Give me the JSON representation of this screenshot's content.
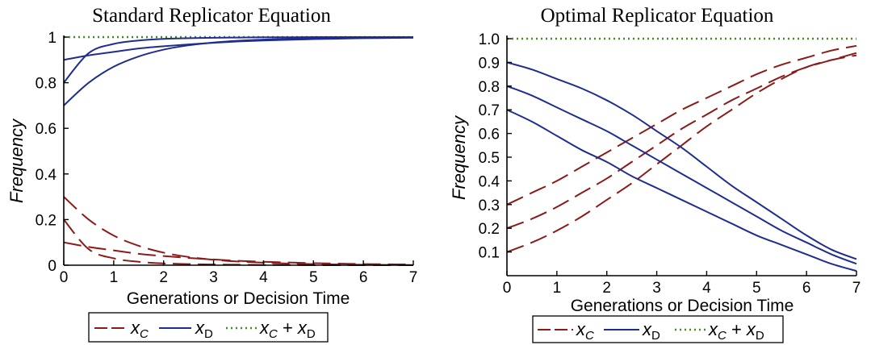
{
  "colors": {
    "xc": "#8b1a1a",
    "xd": "#1f2d8f",
    "sum": "#3d8f1a"
  },
  "legend": {
    "xc_label": "x",
    "xc_sub": "C",
    "xd_label": "x",
    "xd_sub": "D",
    "sum_a": "x",
    "sum_a_sub": "C",
    "sum_plus": " + ",
    "sum_b": "x",
    "sum_b_sub": "D"
  },
  "chart_data": [
    {
      "type": "line",
      "title": "Standard Replicator Equation",
      "xlabel": "Generations or Decision Time",
      "ylabel": "Frequency",
      "xlim": [
        0,
        7
      ],
      "ylim": [
        0,
        1
      ],
      "xticks": [
        "0",
        "1",
        "2",
        "3",
        "4",
        "5",
        "6",
        "7"
      ],
      "yticks": [
        {
          "v": 0,
          "t": "0"
        },
        {
          "v": 0.2,
          "t": "0.2"
        },
        {
          "v": 0.4,
          "t": "0.4"
        },
        {
          "v": 0.6,
          "t": "0.6"
        },
        {
          "v": 0.8,
          "t": "0.8"
        },
        {
          "v": 1,
          "t": "1"
        }
      ],
      "x": [
        0,
        0.5,
        1,
        1.5,
        2,
        2.5,
        3,
        3.5,
        4,
        4.5,
        5,
        5.5,
        6,
        6.5,
        7
      ],
      "series": [
        {
          "kind": "xc",
          "values": [
            0.1,
            0.08,
            0.065,
            0.05,
            0.04,
            0.032,
            0.025,
            0.019,
            0.015,
            0.012,
            0.009,
            0.007,
            0.005,
            0.004,
            0.003
          ]
        },
        {
          "kind": "xc",
          "values": [
            0.2,
            0.07,
            0.03,
            0.015,
            0.008,
            0.005,
            0.003,
            0.002,
            0.001,
            0.001,
            0.0,
            0.0,
            0.0,
            0.0,
            0.0
          ]
        },
        {
          "kind": "xc",
          "values": [
            0.3,
            0.2,
            0.13,
            0.085,
            0.055,
            0.036,
            0.024,
            0.016,
            0.011,
            0.007,
            0.005,
            0.003,
            0.002,
            0.0015,
            0.001
          ]
        },
        {
          "kind": "xd",
          "values": [
            0.9,
            0.92,
            0.935,
            0.95,
            0.96,
            0.968,
            0.975,
            0.981,
            0.985,
            0.988,
            0.991,
            0.993,
            0.995,
            0.996,
            0.997
          ]
        },
        {
          "kind": "xd",
          "values": [
            0.8,
            0.93,
            0.97,
            0.985,
            0.992,
            0.995,
            0.997,
            0.998,
            0.999,
            0.999,
            1.0,
            1.0,
            1.0,
            1.0,
            1.0
          ]
        },
        {
          "kind": "xd",
          "values": [
            0.7,
            0.8,
            0.87,
            0.915,
            0.945,
            0.964,
            0.976,
            0.984,
            0.989,
            0.993,
            0.995,
            0.997,
            0.998,
            0.9985,
            0.999
          ]
        },
        {
          "kind": "sum",
          "values": [
            1,
            1,
            1,
            1,
            1,
            1,
            1,
            1,
            1,
            1,
            1,
            1,
            1,
            1,
            1
          ]
        }
      ]
    },
    {
      "type": "line",
      "title": "Optimal Replicator Equation",
      "xlabel": "Generations or Decision Time",
      "ylabel": "Frequency",
      "xlim": [
        0,
        7
      ],
      "ylim": [
        0,
        1
      ],
      "xticks": [
        "0",
        "1",
        "2",
        "3",
        "4",
        "5",
        "6",
        "7"
      ],
      "yticks": [
        {
          "v": 0.1,
          "t": "0.1"
        },
        {
          "v": 0.2,
          "t": "0.2"
        },
        {
          "v": 0.3,
          "t": "0.3"
        },
        {
          "v": 0.4,
          "t": "0.4"
        },
        {
          "v": 0.5,
          "t": "0.5"
        },
        {
          "v": 0.6,
          "t": "0.6"
        },
        {
          "v": 0.7,
          "t": "0.7"
        },
        {
          "v": 0.8,
          "t": "0.8"
        },
        {
          "v": 0.9,
          "t": "0.9"
        },
        {
          "v": 1.0,
          "t": "1.0"
        }
      ],
      "x": [
        0,
        0.5,
        1,
        1.5,
        2,
        2.5,
        3,
        3.5,
        4,
        4.5,
        5,
        5.5,
        6,
        6.5,
        7
      ],
      "series": [
        {
          "kind": "xc",
          "values": [
            0.1,
            0.14,
            0.19,
            0.25,
            0.32,
            0.39,
            0.47,
            0.55,
            0.63,
            0.7,
            0.77,
            0.83,
            0.88,
            0.91,
            0.93
          ]
        },
        {
          "kind": "xc",
          "values": [
            0.2,
            0.24,
            0.29,
            0.35,
            0.41,
            0.48,
            0.55,
            0.62,
            0.68,
            0.74,
            0.79,
            0.84,
            0.88,
            0.91,
            0.94
          ]
        },
        {
          "kind": "xc",
          "values": [
            0.3,
            0.35,
            0.4,
            0.46,
            0.52,
            0.58,
            0.64,
            0.7,
            0.75,
            0.8,
            0.85,
            0.89,
            0.92,
            0.95,
            0.97
          ]
        },
        {
          "kind": "xd",
          "values": [
            0.9,
            0.87,
            0.83,
            0.79,
            0.74,
            0.68,
            0.61,
            0.54,
            0.46,
            0.38,
            0.31,
            0.24,
            0.17,
            0.11,
            0.07
          ]
        },
        {
          "kind": "xd",
          "values": [
            0.8,
            0.76,
            0.71,
            0.66,
            0.61,
            0.55,
            0.49,
            0.43,
            0.37,
            0.31,
            0.25,
            0.19,
            0.14,
            0.09,
            0.05
          ]
        },
        {
          "kind": "xd",
          "values": [
            0.7,
            0.65,
            0.59,
            0.53,
            0.48,
            0.42,
            0.37,
            0.32,
            0.27,
            0.22,
            0.17,
            0.13,
            0.09,
            0.05,
            0.02
          ]
        },
        {
          "kind": "sum",
          "values": [
            1,
            1,
            1,
            1,
            1,
            1,
            1,
            1,
            1,
            1,
            1,
            1,
            1,
            1,
            1
          ]
        }
      ]
    }
  ]
}
